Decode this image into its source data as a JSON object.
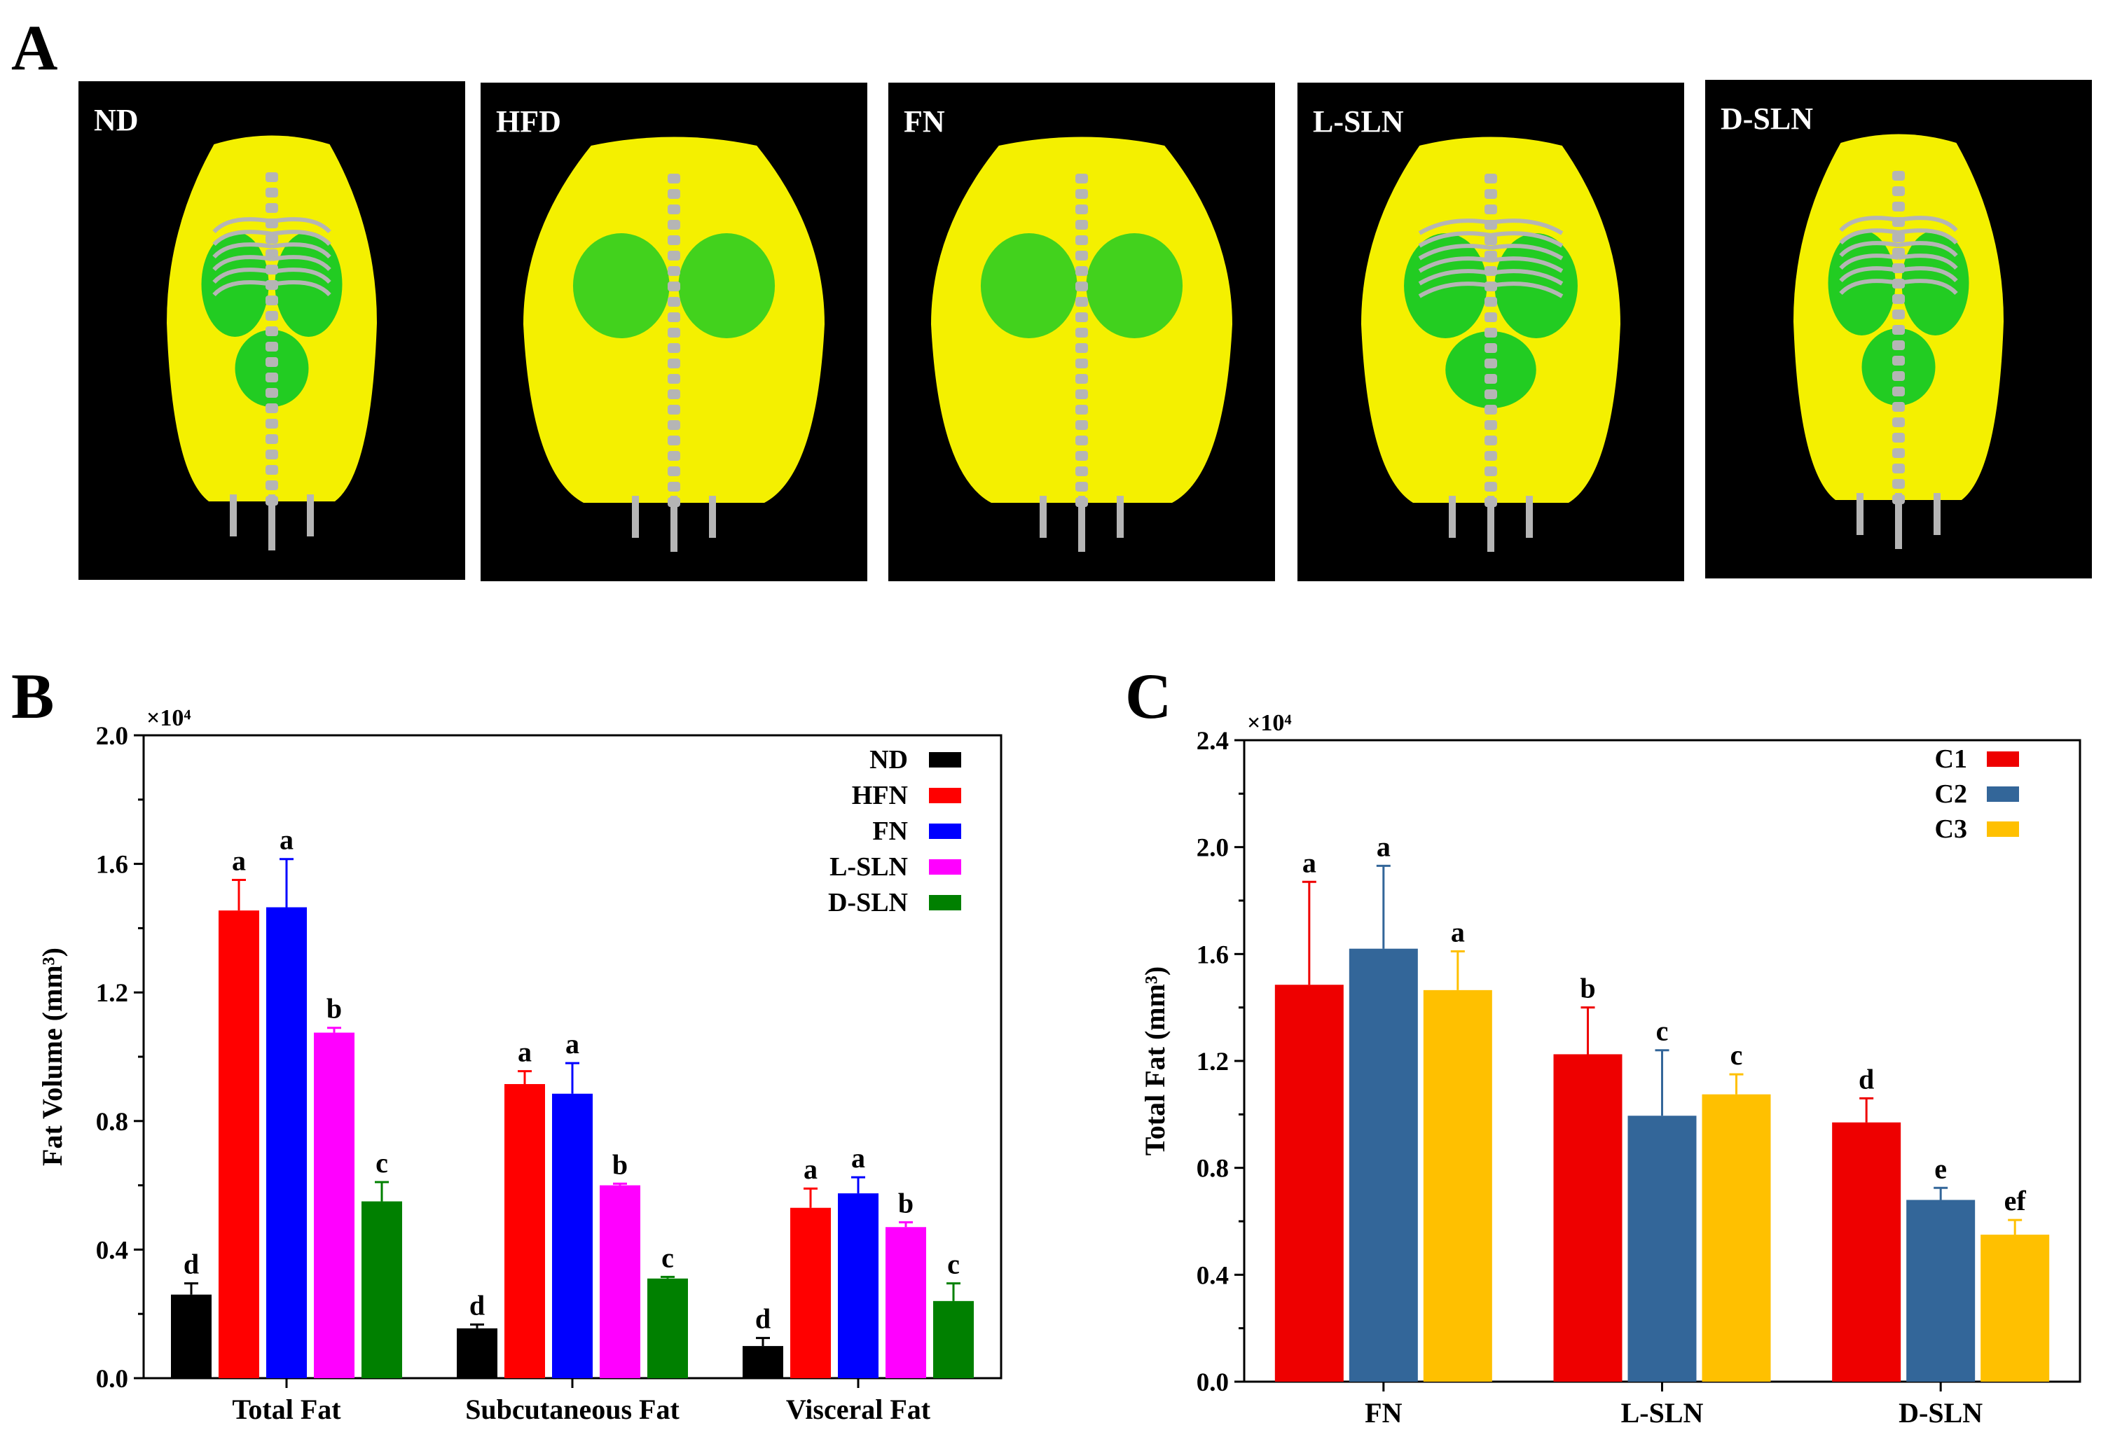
{
  "panels": {
    "a": {
      "letter": "A"
    },
    "b": {
      "letter": "B"
    },
    "c": {
      "letter": "C"
    }
  },
  "ct_images": [
    {
      "label": "ND",
      "build": "lean"
    },
    {
      "label": "HFD",
      "build": "obese"
    },
    {
      "label": "FN",
      "build": "obese"
    },
    {
      "label": "L-SLN",
      "build": "medium"
    },
    {
      "label": "D-SLN",
      "build": "lean"
    }
  ],
  "colors": {
    "ct_fat": "#f4f000",
    "ct_visceral": "#22cc22",
    "ct_bone": "#b5b5b5"
  },
  "chart_data": [
    {
      "type": "bar",
      "ylabel": "Fat Volume (mm³)",
      "multiplier": "×10⁴",
      "ylim": [
        0,
        2.0
      ],
      "yticks": [
        0.0,
        0.4,
        0.8,
        1.2,
        1.6,
        2.0
      ],
      "ytick_labels": [
        "0.0",
        "0.4",
        "0.8",
        "1.2",
        "1.6",
        "2.0"
      ],
      "categories": [
        "Total Fat",
        "Subcutaneous Fat",
        "Visceral Fat"
      ],
      "legend_position": "top-right",
      "series": [
        {
          "name": "ND",
          "color": "#000000",
          "values": [
            0.26,
            0.155,
            0.1
          ],
          "errors": [
            0.035,
            0.012,
            0.025
          ],
          "letters": [
            "d",
            "d",
            "d"
          ]
        },
        {
          "name": "HFN",
          "color": "#ff0000",
          "values": [
            1.455,
            0.915,
            0.53
          ],
          "errors": [
            0.095,
            0.04,
            0.06
          ],
          "letters": [
            "a",
            "a",
            "a"
          ]
        },
        {
          "name": "FN",
          "color": "#0000ff",
          "values": [
            1.465,
            0.885,
            0.575
          ],
          "errors": [
            0.15,
            0.095,
            0.05
          ],
          "letters": [
            "a",
            "a",
            "a"
          ]
        },
        {
          "name": "L-SLN",
          "color": "#ff00ff",
          "values": [
            1.075,
            0.6,
            0.47
          ],
          "errors": [
            0.015,
            0.005,
            0.015
          ],
          "letters": [
            "b",
            "b",
            "b"
          ]
        },
        {
          "name": "D-SLN",
          "color": "#008000",
          "values": [
            0.55,
            0.31,
            0.24
          ],
          "errors": [
            0.06,
            0.005,
            0.055
          ],
          "letters": [
            "c",
            "c",
            "c"
          ]
        }
      ]
    },
    {
      "type": "bar",
      "ylabel": "Total Fat (mm³)",
      "multiplier": "×10⁴",
      "ylim": [
        0,
        2.4
      ],
      "yticks": [
        0.0,
        0.4,
        0.8,
        1.2,
        1.6,
        2.0,
        2.4
      ],
      "ytick_labels": [
        "0.0",
        "0.4",
        "0.8",
        "1.2",
        "1.6",
        "2.0",
        "2.4"
      ],
      "categories": [
        "FN",
        "L-SLN",
        "D-SLN"
      ],
      "legend_position": "top-right",
      "series": [
        {
          "name": "C1",
          "color": "#ee0000",
          "values": [
            1.485,
            1.225,
            0.97
          ],
          "errors": [
            0.385,
            0.175,
            0.09
          ],
          "letters": [
            "a",
            "b",
            "d"
          ]
        },
        {
          "name": "C2",
          "color": "#336699",
          "values": [
            1.62,
            0.995,
            0.68
          ],
          "errors": [
            0.31,
            0.245,
            0.045
          ],
          "letters": [
            "a",
            "c",
            "e"
          ]
        },
        {
          "name": "C3",
          "color": "#ffc000",
          "values": [
            1.465,
            1.075,
            0.55
          ],
          "errors": [
            0.145,
            0.075,
            0.055
          ],
          "letters": [
            "a",
            "c",
            "ef"
          ]
        }
      ]
    }
  ]
}
